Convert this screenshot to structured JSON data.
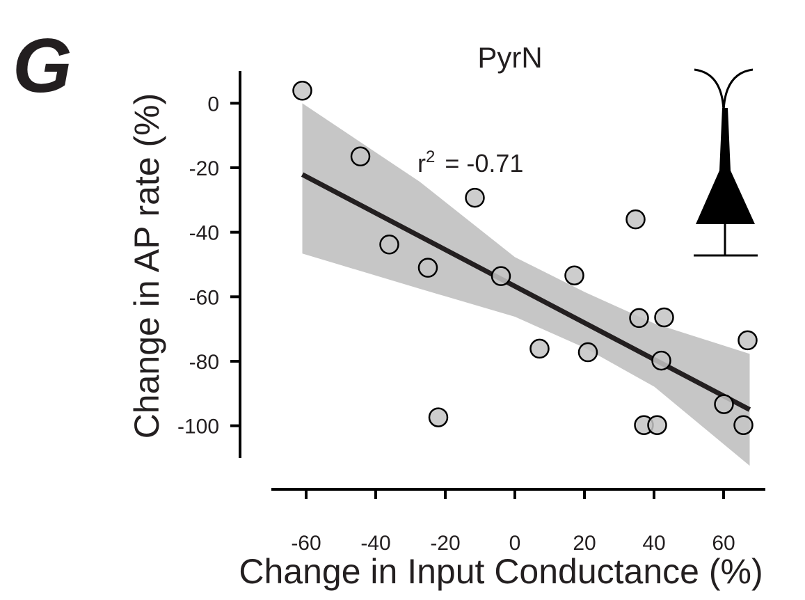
{
  "chart_data": {
    "type": "scatter",
    "panel_label": "G",
    "title": "PyrN",
    "x_label": "Change in Input Conductance (%)",
    "y_label": "Change in AP rate (%)",
    "annotation": {
      "base": "r",
      "sup": "2",
      "rest": "= -0.71"
    },
    "xlim": [
      -70,
      72
    ],
    "ylim": [
      -110,
      10
    ],
    "xticks": [
      -60,
      -40,
      -20,
      0,
      20,
      40,
      60
    ],
    "yticks": [
      0,
      -20,
      -40,
      -60,
      -80,
      -100
    ],
    "series": [
      {
        "color": "#c4c4c4",
        "x": [
          -61.1,
          -44.4,
          -11.5,
          -36.1,
          -25.0,
          -4.0,
          -22.0,
          34.7,
          17.1,
          35.7,
          42.9,
          66.9,
          7.1,
          21.0,
          42.1,
          60.1,
          37.1,
          40.9,
          65.7
        ],
        "values": [
          3.9,
          -16.5,
          -29.3,
          -43.8,
          -51.0,
          -53.6,
          -97.4,
          -36.0,
          -53.4,
          -66.6,
          -66.4,
          -73.5,
          -76.1,
          -77.2,
          -79.8,
          -93.3,
          -99.8,
          -99.8,
          -99.8
        ]
      }
    ],
    "fit": {
      "color": "#231f20",
      "x": [
        -61.1,
        67.5
      ],
      "values": [
        -22.1,
        -95.0
      ]
    },
    "band": {
      "color": "#c6c6c6",
      "x": [
        -61.1,
        -27.4,
        0,
        20.2,
        40.1,
        67.5
      ],
      "upper": [
        0,
        -24.3,
        -47.7,
        -58.6,
        -68.3,
        -77.7
      ],
      "lower": [
        -46.6,
        -57.5,
        -66.2,
        -75.9,
        -87.9,
        -112.4
      ]
    }
  }
}
